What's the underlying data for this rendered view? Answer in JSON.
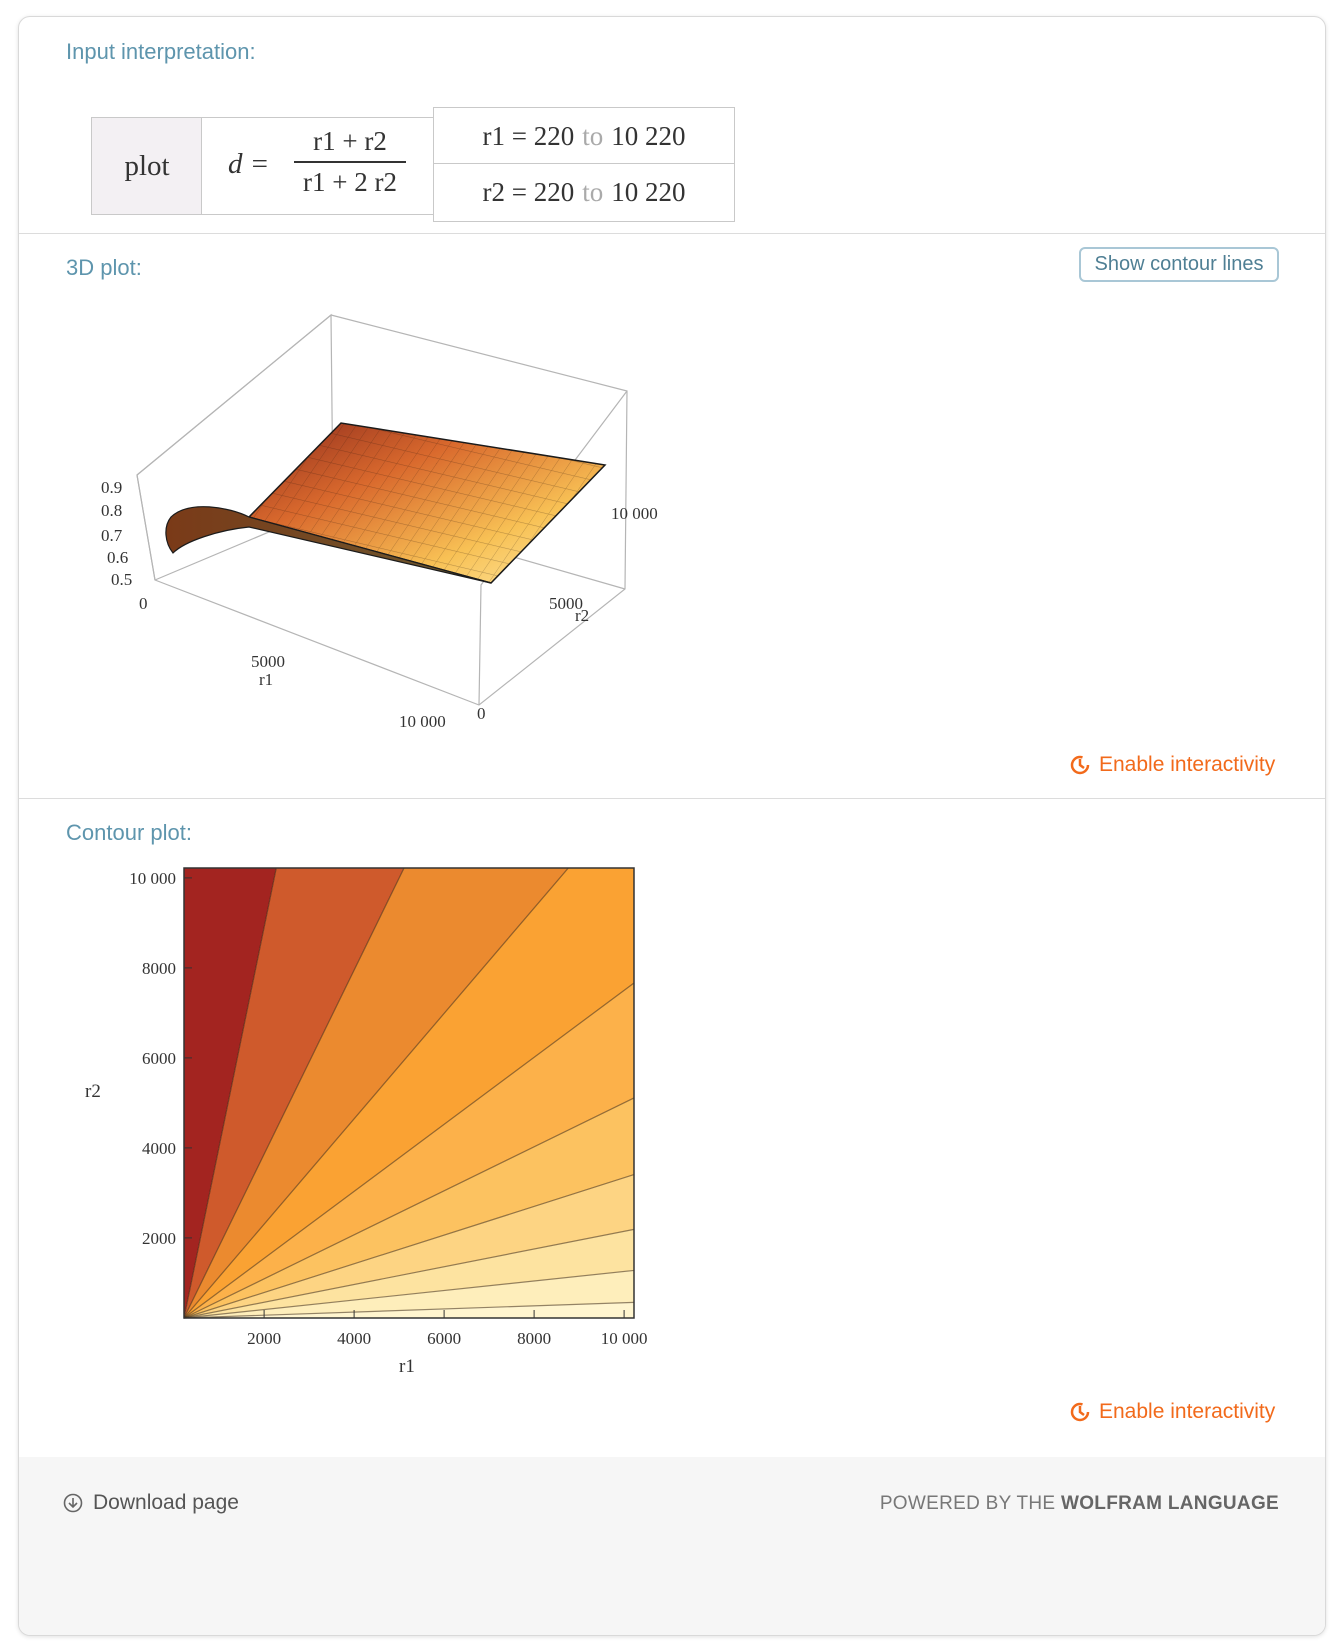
{
  "input_pod": {
    "title": "Input interpretation:",
    "command": "plot",
    "equation_lhs": "d =",
    "numerator": "r1 + r2",
    "denominator": "r1 + 2 r2",
    "r1_range": {
      "var": "r1 =",
      "from": "220",
      "to_word": "to",
      "to": "10 220"
    },
    "r2_range": {
      "var": "r2 =",
      "from": "220",
      "to_word": "to",
      "to": "10 220"
    }
  },
  "plot3d_pod": {
    "title": "3D plot:",
    "show_contour_label": "Show contour lines",
    "enable_label": "Enable interactivity",
    "z_ticks": [
      "0.9",
      "0.8",
      "0.7",
      "0.6",
      "0.5"
    ],
    "r1_ticks": [
      "0",
      "5000",
      "10 000"
    ],
    "r2_ticks": [
      "0",
      "5000",
      "10 000"
    ],
    "r1_label": "r1",
    "r2_label": "r2"
  },
  "contour_pod": {
    "title": "Contour plot:",
    "enable_label": "Enable interactivity",
    "x_label": "r1",
    "y_label": "r2",
    "x_ticks": [
      "2000",
      "4000",
      "6000",
      "8000",
      "10 000"
    ],
    "y_ticks": [
      "2000",
      "4000",
      "6000",
      "8000",
      "10 000"
    ]
  },
  "footer": {
    "download_label": "Download page",
    "powered_prefix": "POWERED BY THE",
    "powered_brand": "WOLFRAM LANGUAGE"
  },
  "chart_data": [
    {
      "type": "heatmap",
      "function": "d = (r1 + r2)/(r1 + 2 r2)",
      "x": {
        "label": "r1",
        "range": [
          220,
          10220
        ],
        "ticks": [
          2000,
          4000,
          6000,
          8000,
          10000
        ]
      },
      "y": {
        "label": "r2",
        "range": [
          220,
          10220
        ],
        "ticks": [
          2000,
          4000,
          6000,
          8000,
          10000
        ]
      },
      "contour_levels": [
        0.55,
        0.6,
        0.65,
        0.7,
        0.75,
        0.8,
        0.85,
        0.9,
        0.95
      ],
      "colors": [
        "#a32420",
        "#cf5a2c",
        "#eb8a2f",
        "#faa233",
        "#fcb14a",
        "#fcc260",
        "#fdd483",
        "#fde3a0",
        "#feeebb",
        "#fff5cf"
      ]
    }
  ]
}
